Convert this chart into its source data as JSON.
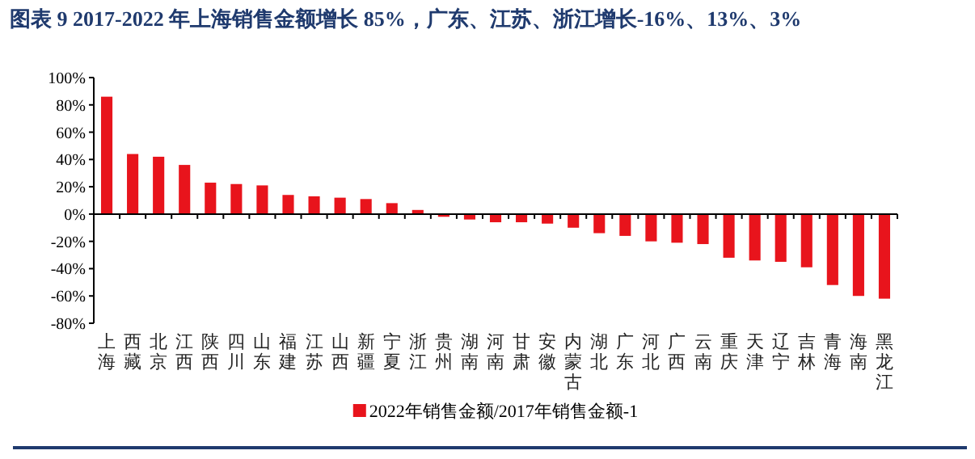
{
  "chart_data": {
    "type": "bar",
    "title": "图表 9   2017-2022 年上海销售金额增长 85%，广东、江苏、浙江增长-16%、13%、3%",
    "categories": [
      "上海",
      "西藏",
      "北京",
      "江西",
      "陕西",
      "四川",
      "山东",
      "福建",
      "江苏",
      "山西",
      "新疆",
      "宁夏",
      "浙江",
      "贵州",
      "湖南",
      "河南",
      "甘肃",
      "安徽",
      "内蒙古",
      "湖北",
      "广东",
      "河北",
      "广西",
      "云南",
      "重庆",
      "天津",
      "辽宁",
      "吉林",
      "青海",
      "海南",
      "黑龙江"
    ],
    "series": [
      {
        "name": "2022年销售金额/2017年销售金额-1",
        "color": "#e8141c",
        "values": [
          86,
          44,
          42,
          36,
          23,
          22,
          21,
          14,
          13,
          12,
          11,
          8,
          3,
          -2,
          -4,
          -6,
          -6,
          -7,
          -10,
          -14,
          -16,
          -20,
          -21,
          -22,
          -32,
          -34,
          -35,
          -39,
          -52,
          -60,
          -62
        ]
      }
    ],
    "ylim": [
      -80,
      100
    ],
    "yticks": [
      {
        "value": -80,
        "label": "-80%"
      },
      {
        "value": -60,
        "label": "-60%"
      },
      {
        "value": -40,
        "label": "-40%"
      },
      {
        "value": -20,
        "label": "-20%"
      },
      {
        "value": 0,
        "label": "0%"
      },
      {
        "value": 20,
        "label": "20%"
      },
      {
        "value": 40,
        "label": "40%"
      },
      {
        "value": 60,
        "label": "60%"
      },
      {
        "value": 80,
        "label": "80%"
      },
      {
        "value": 100,
        "label": "100%"
      }
    ],
    "legend": "bottom"
  }
}
